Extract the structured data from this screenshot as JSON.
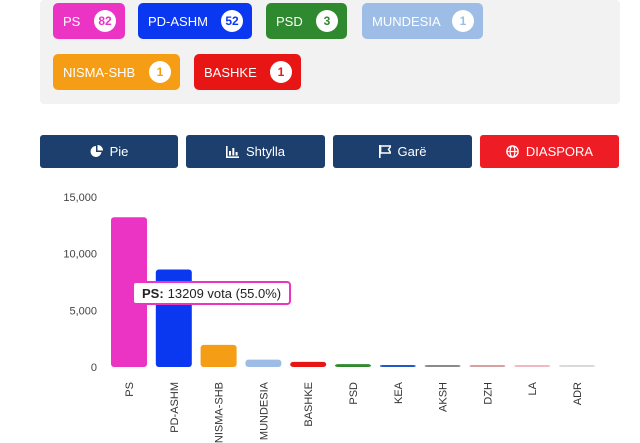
{
  "parties": [
    {
      "name": "PS",
      "count": "82",
      "color": "#ec34c4"
    },
    {
      "name": "PD-ASHM",
      "count": "52",
      "color": "#0a37f0"
    },
    {
      "name": "PSD",
      "count": "3",
      "color": "#2f8a2f"
    },
    {
      "name": "MUNDESIA",
      "count": "1",
      "color": "#9dbde6"
    },
    {
      "name": "NISMA-SHB",
      "count": "1",
      "color": "#f59d14"
    },
    {
      "name": "BASHKE",
      "count": "1",
      "color": "#e81515"
    }
  ],
  "tabs": {
    "pie": "Pie",
    "bars": "Shtylla",
    "race": "Garë",
    "diaspora": "DIASPORA"
  },
  "colors": {
    "tab_primary": "#1d3f6e",
    "tab_diaspora": "#ee1c25"
  },
  "tooltip": {
    "name": "PS:",
    "text": "13209 vota (55.0%)"
  },
  "chart_data": {
    "type": "bar",
    "categories": [
      "PS",
      "PD-ASHM",
      "NISMA-SHB",
      "MUNDESIA",
      "BASHKE",
      "PSD",
      "KEA",
      "AKSH",
      "DZH",
      "LA",
      "ADR"
    ],
    "values": [
      13209,
      8600,
      1950,
      650,
      450,
      250,
      150,
      100,
      80,
      60,
      40
    ],
    "colors": [
      "#ec34c4",
      "#0a37f0",
      "#f59d14",
      "#9dbde6",
      "#e81515",
      "#2f8a2f",
      "#1f5ac8",
      "#8a8a8a",
      "#d4a0a0",
      "#f2b8c0",
      "#d9d9d9"
    ],
    "ylim": [
      0,
      15000
    ],
    "yticks": [
      "0",
      "5,000",
      "10,000",
      "15,000"
    ],
    "ytick_values": [
      0,
      5000,
      10000,
      15000
    ]
  }
}
